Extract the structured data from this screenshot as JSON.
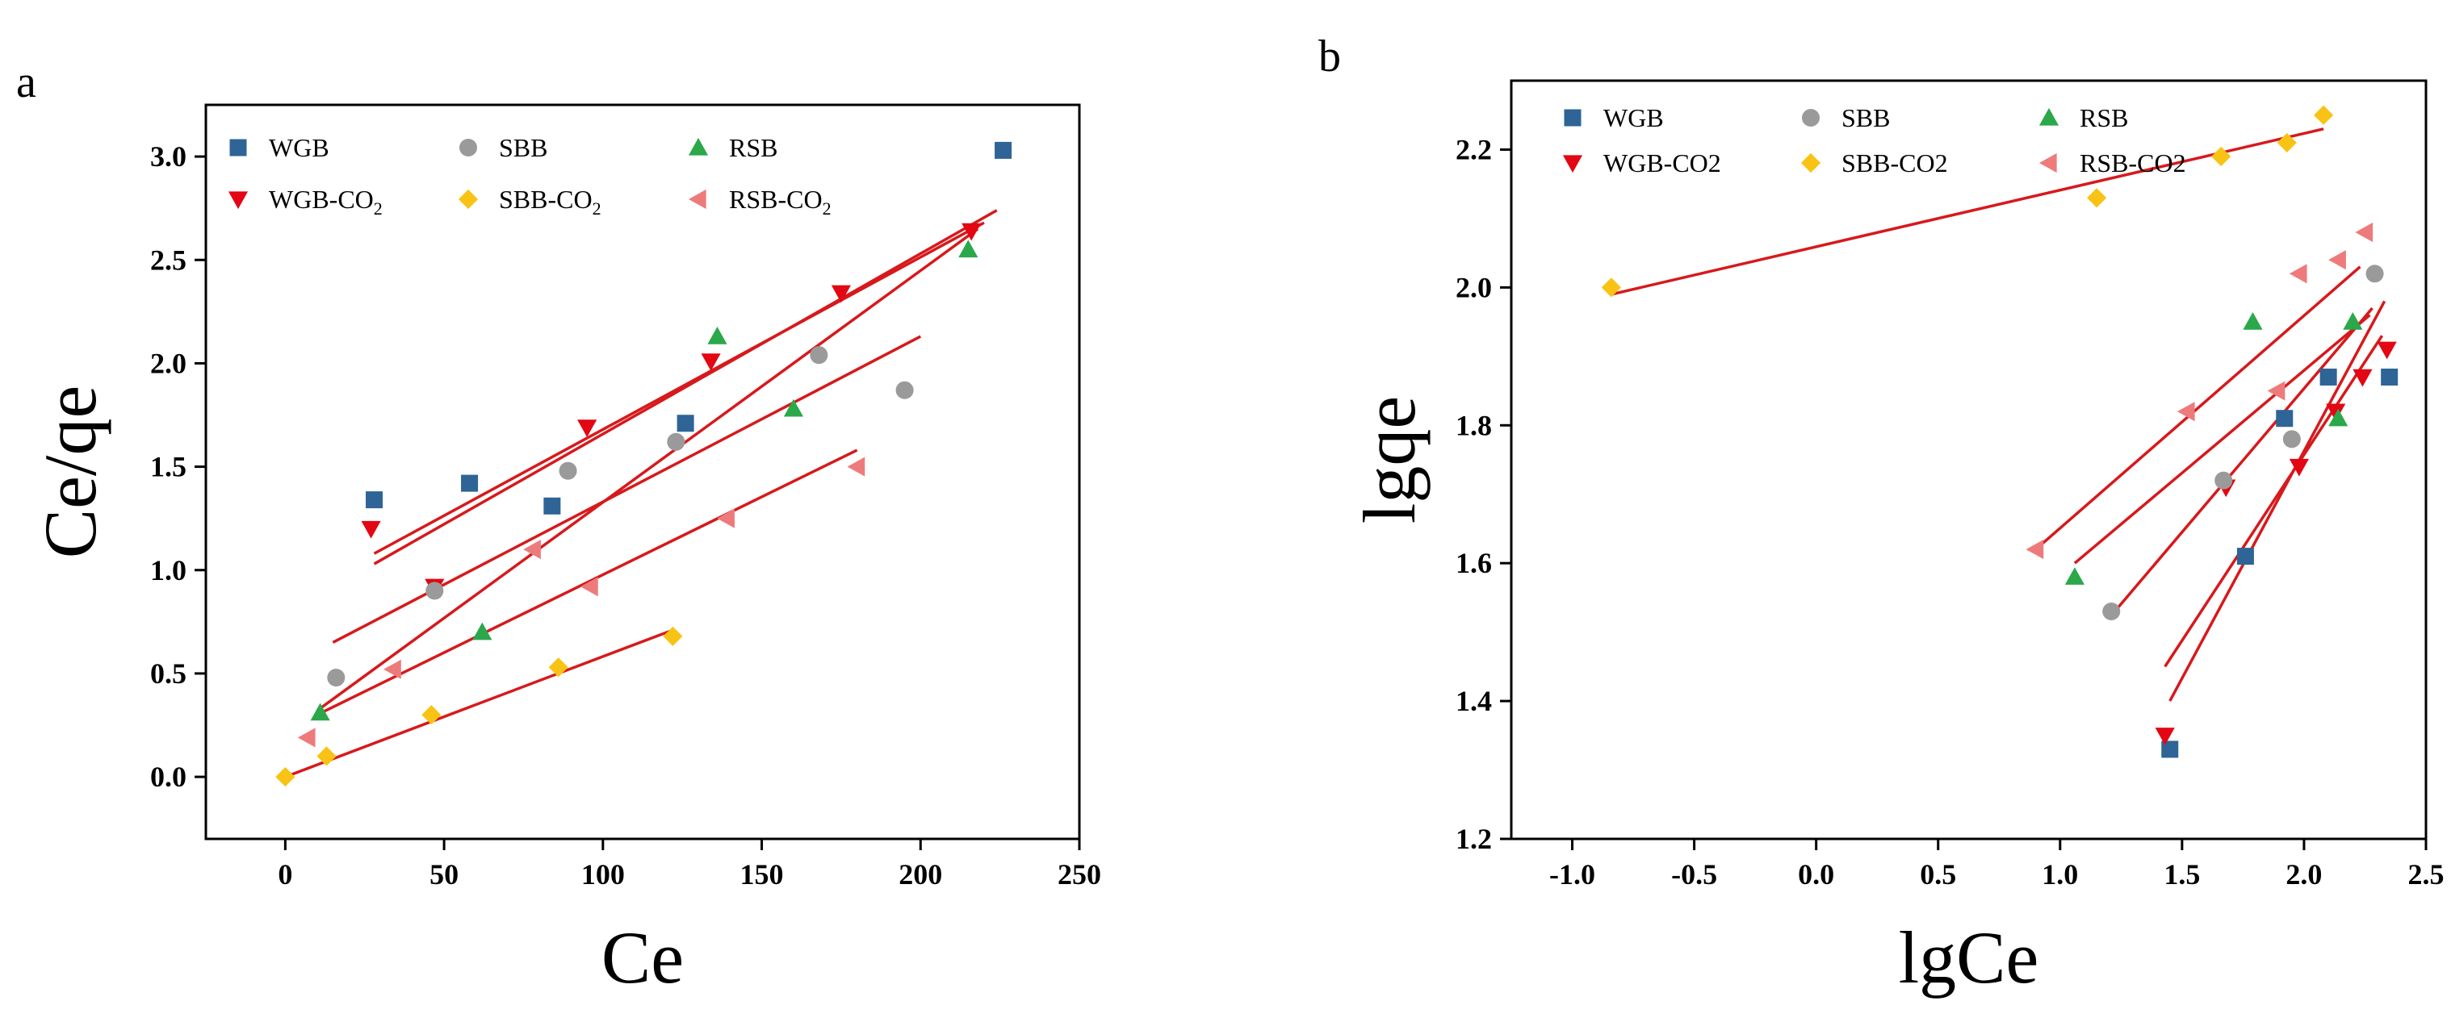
{
  "figure": {
    "panel_labels": [
      "a",
      "b"
    ]
  },
  "chart_data": [
    {
      "type": "scatter",
      "panel": "a",
      "title": "",
      "xlabel": "Ce",
      "ylabel": "Ce/qe",
      "xlim": [
        -25,
        250
      ],
      "ylim": [
        -0.3,
        3.25
      ],
      "xticks": [
        0,
        50,
        100,
        150,
        200,
        250
      ],
      "yticks": [
        0.0,
        0.5,
        1.0,
        1.5,
        2.0,
        2.5,
        3.0
      ],
      "xtick_labels": [
        "0",
        "50",
        "100",
        "150",
        "200",
        "250"
      ],
      "ytick_labels": [
        "0.0",
        "0.5",
        "1.0",
        "1.5",
        "2.0",
        "2.5",
        "3.0"
      ],
      "legend_position": "top-left",
      "legend_columns": 3,
      "grid": false,
      "series": [
        {
          "name": "WGB",
          "label_main": "WGB",
          "label_sub": "",
          "marker": "square",
          "color": "#2e6496",
          "x": [
            28,
            58,
            84,
            126,
            226
          ],
          "y": [
            1.34,
            1.42,
            1.31,
            1.71,
            3.03
          ],
          "fit": [
            [
              28,
              1.08
            ],
            [
              220,
              2.68
            ]
          ]
        },
        {
          "name": "WGB-CO2",
          "label_main": "WGB-CO",
          "label_sub": "2",
          "marker": "triangle-down",
          "color": "#e30613",
          "x": [
            27,
            47,
            95,
            134,
            175,
            216
          ],
          "y": [
            1.2,
            0.92,
            1.69,
            2.01,
            2.34,
            2.64
          ],
          "fit": [
            [
              28,
              1.03
            ],
            [
              224,
              2.74
            ]
          ]
        },
        {
          "name": "SBB",
          "label_main": "SBB",
          "label_sub": "",
          "marker": "circle",
          "color": "#9a9a9a",
          "x": [
            16,
            47,
            89,
            123,
            168,
            195
          ],
          "y": [
            0.48,
            0.9,
            1.48,
            1.62,
            2.04,
            1.87
          ],
          "fit": [
            [
              15,
              0.65
            ],
            [
              200,
              2.13
            ]
          ]
        },
        {
          "name": "SBB-CO2",
          "label_main": "SBB-CO",
          "label_sub": "2",
          "marker": "diamond",
          "color": "#f9c315",
          "x": [
            0,
            13,
            46,
            86,
            122
          ],
          "y": [
            0.0,
            0.1,
            0.3,
            0.53,
            0.68
          ],
          "fit": [
            [
              0,
              0.0
            ],
            [
              122,
              0.71
            ]
          ]
        },
        {
          "name": "RSB",
          "label_main": "RSB",
          "label_sub": "",
          "marker": "triangle-up",
          "color": "#2aa84a",
          "x": [
            11,
            62,
            136,
            160,
            215
          ],
          "y": [
            0.31,
            0.7,
            2.13,
            1.78,
            2.55
          ],
          "fit": [
            [
              10,
              0.32
            ],
            [
              218,
              2.65
            ]
          ]
        },
        {
          "name": "RSB-CO2",
          "label_main": "RSB-CO",
          "label_sub": "2",
          "marker": "triangle-left",
          "color": "#ee7b7c",
          "x": [
            7,
            34,
            78,
            96,
            139,
            180
          ],
          "y": [
            0.19,
            0.52,
            1.1,
            0.92,
            1.25,
            1.5
          ],
          "fit": [
            [
              10,
              0.3
            ],
            [
              180,
              1.58
            ]
          ]
        }
      ]
    },
    {
      "type": "scatter",
      "panel": "b",
      "title": "",
      "xlabel": "lgCe",
      "ylabel": "lgqe",
      "xlim": [
        -1.25,
        2.5
      ],
      "ylim": [
        1.2,
        2.3
      ],
      "xticks": [
        -1.0,
        -0.5,
        0.0,
        0.5,
        1.0,
        1.5,
        2.0,
        2.5
      ],
      "yticks": [
        1.2,
        1.4,
        1.6,
        1.8,
        2.0,
        2.2
      ],
      "xtick_labels": [
        "-1.0",
        "-0.5",
        "0.0",
        "0.5",
        "1.0",
        "1.5",
        "2.0",
        "2.5"
      ],
      "ytick_labels": [
        "1.2",
        "1.4",
        "1.6",
        "1.8",
        "2.0",
        "2.2"
      ],
      "legend_position": "top-left",
      "legend_columns": 3,
      "grid": false,
      "series": [
        {
          "name": "WGB",
          "label_main": "WGB",
          "label_sub": "",
          "marker": "square",
          "color": "#2e6496",
          "x": [
            1.45,
            1.76,
            1.92,
            2.1,
            2.35
          ],
          "y": [
            1.33,
            1.61,
            1.81,
            1.87,
            1.87
          ],
          "fit": [
            [
              1.45,
              1.4
            ],
            [
              2.33,
              1.98
            ]
          ]
        },
        {
          "name": "WGB-CO2",
          "label_main": "WGB-CO2",
          "label_sub": "",
          "marker": "triangle-down",
          "color": "#e30613",
          "x": [
            1.43,
            1.68,
            1.98,
            2.13,
            2.24,
            2.34
          ],
          "y": [
            1.35,
            1.71,
            1.74,
            1.82,
            1.87,
            1.91
          ],
          "fit": [
            [
              1.43,
              1.45
            ],
            [
              2.32,
              1.93
            ]
          ]
        },
        {
          "name": "SBB",
          "label_main": "SBB",
          "label_sub": "",
          "marker": "circle",
          "color": "#9a9a9a",
          "x": [
            1.21,
            1.67,
            1.95,
            2.29
          ],
          "y": [
            1.53,
            1.72,
            1.78,
            2.02
          ],
          "fit": [
            [
              1.2,
              1.52
            ],
            [
              2.28,
              1.97
            ]
          ]
        },
        {
          "name": "SBB-CO2",
          "label_main": "SBB-CO2",
          "label_sub": "",
          "marker": "diamond",
          "color": "#f9c315",
          "x": [
            -0.84,
            1.15,
            1.66,
            1.93,
            2.08
          ],
          "y": [
            2.0,
            2.13,
            2.19,
            2.21,
            2.25
          ],
          "fit": [
            [
              -0.84,
              1.99
            ],
            [
              2.08,
              2.23
            ]
          ]
        },
        {
          "name": "RSB",
          "label_main": "RSB",
          "label_sub": "",
          "marker": "triangle-up",
          "color": "#2aa84a",
          "x": [
            1.06,
            1.79,
            2.14,
            2.2
          ],
          "y": [
            1.58,
            1.95,
            1.81,
            1.95
          ],
          "fit": [
            [
              1.06,
              1.6
            ],
            [
              2.27,
              1.96
            ]
          ]
        },
        {
          "name": "RSB-CO2",
          "label_main": "RSB-CO2",
          "label_sub": "",
          "marker": "triangle-left",
          "color": "#ee7b7c",
          "x": [
            0.9,
            1.52,
            1.89,
            1.98,
            2.14,
            2.25
          ],
          "y": [
            1.62,
            1.82,
            1.85,
            2.02,
            2.04,
            2.08
          ],
          "fit": [
            [
              0.9,
              1.62
            ],
            [
              2.23,
              2.03
            ]
          ]
        }
      ]
    }
  ]
}
